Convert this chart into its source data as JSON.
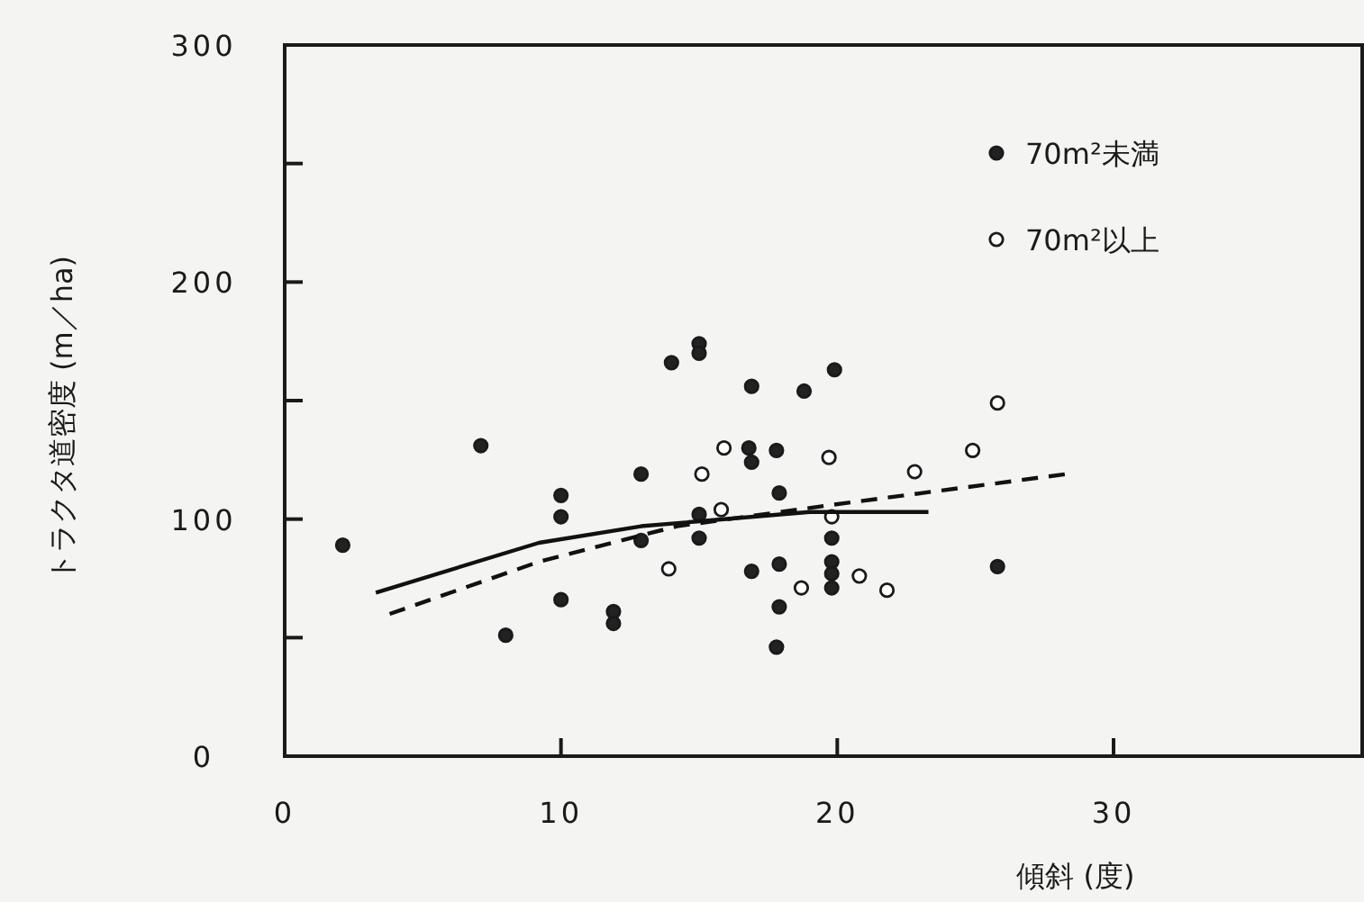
{
  "chart_data": {
    "type": "scatter",
    "xlabel": "傾斜 (度)",
    "ylabel": "トラクタ道密度 (m／ha)",
    "xlim": [
      0,
      39
    ],
    "ylim": [
      0,
      300
    ],
    "xticks": [
      0,
      10,
      20,
      30
    ],
    "yticks": [
      0,
      {
        "value": 50,
        "label": null
      },
      100,
      {
        "value": 150,
        "label": null
      },
      200,
      {
        "value": 250,
        "label": null
      },
      300
    ],
    "grid": false,
    "legend": "top right",
    "marker": "circle",
    "series": [
      {
        "name": "70m²未満",
        "color": "#222222",
        "x": [
          2.1,
          7.1,
          8.0,
          10,
          10,
          10,
          11.9,
          11.9,
          12.9,
          12.9,
          14.0,
          15.0,
          15.0,
          15.0,
          15.0,
          16.9,
          16.8,
          16.9,
          17.8,
          17.9,
          16.9,
          17.9,
          17.9,
          17.8,
          18.8,
          19.9,
          19.8,
          19.8,
          19.8,
          19.8,
          25.8
        ],
        "values": [
          89,
          131,
          51,
          110,
          101,
          66,
          61,
          56,
          119,
          91,
          166,
          174,
          170,
          102,
          92,
          156,
          130,
          124,
          129,
          111,
          78,
          81,
          63,
          46,
          154,
          163,
          92,
          82,
          77,
          71,
          80
        ]
      },
      {
        "name": "70m²以上",
        "color": "#ffffff",
        "x": [
          15.9,
          15.1,
          15.8,
          13.9,
          18.7,
          19.7,
          22.8,
          24.9,
          25.8,
          19.8,
          20.8,
          21.8
        ],
        "values": [
          130,
          119,
          104,
          79,
          71,
          126,
          120,
          129,
          149,
          101,
          76,
          70
        ]
      },
      {
        "type": "line",
        "color": "#111111",
        "line_style": "solid",
        "marker": "none",
        "x": [
          3.3,
          9.2,
          12.9,
          19.0,
          23.3
        ],
        "values": [
          69,
          90,
          97,
          103,
          103
        ]
      },
      {
        "type": "line",
        "color": "#111111",
        "line_style": "dashed",
        "marker": "none",
        "x": [
          3.8,
          9.2,
          14.2,
          19.8,
          28.3
        ],
        "values": [
          60,
          82,
          97,
          106,
          119
        ]
      }
    ]
  }
}
